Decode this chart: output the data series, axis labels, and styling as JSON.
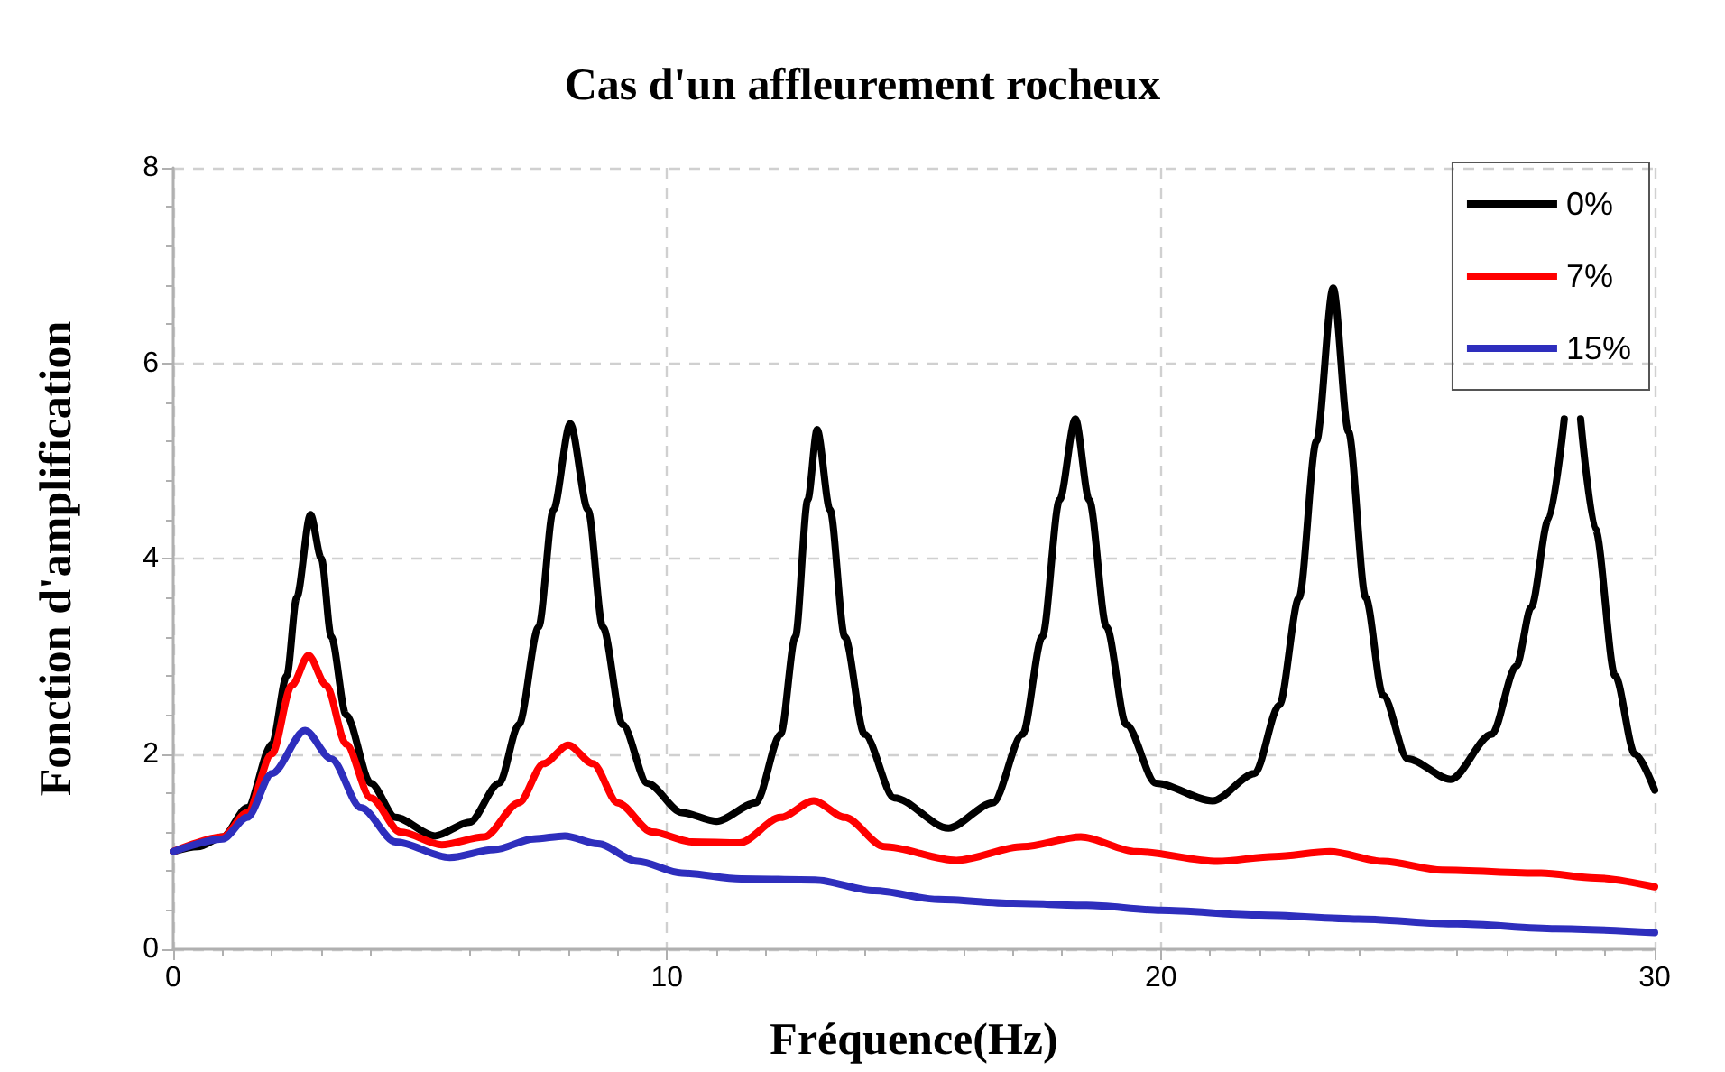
{
  "chart_data": {
    "type": "line",
    "title": "Cas d'un affleurement rocheux",
    "xlabel": "Fréquence(Hz)",
    "ylabel": "Fonction d'amplification",
    "xlim": [
      0,
      30
    ],
    "xticks": [
      0,
      10,
      20,
      30
    ],
    "ylim": [
      0,
      8
    ],
    "yticks": [
      0,
      2,
      4,
      6,
      8
    ],
    "grid": true,
    "legend": "top right",
    "marker": "none",
    "line_style": "solid",
    "series": [
      {
        "name": "0%",
        "color": "#000000",
        "x": [
          0,
          0.5,
          1,
          1.5,
          2,
          2.3,
          2.5,
          2.78,
          3.0,
          3.2,
          3.5,
          4,
          4.5,
          5.3,
          6,
          6.6,
          7,
          7.4,
          7.7,
          8.04,
          8.4,
          8.7,
          9.1,
          9.6,
          10.3,
          11.0,
          11.8,
          12.3,
          12.6,
          12.85,
          13.04,
          13.3,
          13.6,
          14,
          14.6,
          15.7,
          16.6,
          17.2,
          17.6,
          17.95,
          18.27,
          18.55,
          18.9,
          19.3,
          19.9,
          21.05,
          21.9,
          22.4,
          22.8,
          23.15,
          23.49,
          23.8,
          24.15,
          24.5,
          25,
          25.87,
          26.7,
          27.2,
          27.5,
          27.85,
          28.17,
          28.33,
          28.5,
          28.8,
          29.2,
          29.6,
          30
        ],
        "values": [
          1.0,
          1.05,
          1.15,
          1.45,
          2.1,
          2.8,
          3.6,
          4.45,
          4.0,
          3.2,
          2.4,
          1.7,
          1.35,
          1.16,
          1.3,
          1.7,
          2.3,
          3.3,
          4.5,
          5.38,
          4.5,
          3.3,
          2.3,
          1.7,
          1.4,
          1.31,
          1.5,
          2.2,
          3.2,
          4.6,
          5.32,
          4.5,
          3.2,
          2.2,
          1.55,
          1.24,
          1.5,
          2.2,
          3.2,
          4.6,
          5.43,
          4.6,
          3.3,
          2.3,
          1.7,
          1.52,
          1.8,
          2.5,
          3.6,
          5.2,
          6.77,
          5.3,
          3.6,
          2.6,
          1.95,
          1.74,
          2.2,
          2.9,
          3.5,
          4.4,
          5.43,
          null,
          5.43,
          4.3,
          2.8,
          2.0,
          1.63
        ]
      },
      {
        "name": "7%",
        "color": "#ff0000",
        "x": [
          0,
          1,
          1.5,
          2,
          2.4,
          2.74,
          3.1,
          3.5,
          4,
          4.6,
          5.44,
          6.3,
          7,
          7.5,
          8.0,
          8.5,
          9,
          9.7,
          10.5,
          11.47,
          12.3,
          12.97,
          13.6,
          14.4,
          15.86,
          17.2,
          18.38,
          19.5,
          21.15,
          22.3,
          23.42,
          24.5,
          25.7,
          27.7,
          28.8,
          30
        ],
        "values": [
          1.0,
          1.15,
          1.4,
          2.0,
          2.7,
          3.01,
          2.7,
          2.1,
          1.55,
          1.2,
          1.07,
          1.15,
          1.5,
          1.9,
          2.09,
          1.9,
          1.5,
          1.2,
          1.1,
          1.09,
          1.35,
          1.52,
          1.35,
          1.05,
          0.91,
          1.05,
          1.15,
          1.0,
          0.9,
          0.95,
          1.0,
          0.9,
          0.81,
          0.78,
          0.73,
          0.64
        ]
      },
      {
        "name": "15%",
        "color": "#2e2ebd",
        "x": [
          0,
          1,
          1.5,
          2,
          2.67,
          3.2,
          3.8,
          4.5,
          5.6,
          6.5,
          7.3,
          7.93,
          8.6,
          9.4,
          10.3,
          11.5,
          13,
          14.2,
          15.5,
          17,
          18.5,
          20,
          22,
          24,
          26,
          28,
          30
        ],
        "values": [
          1.0,
          1.13,
          1.35,
          1.8,
          2.24,
          1.95,
          1.45,
          1.1,
          0.94,
          1.02,
          1.13,
          1.16,
          1.08,
          0.9,
          0.78,
          0.72,
          0.71,
          0.6,
          0.51,
          0.47,
          0.45,
          0.4,
          0.35,
          0.31,
          0.26,
          0.21,
          0.17
        ]
      }
    ]
  }
}
